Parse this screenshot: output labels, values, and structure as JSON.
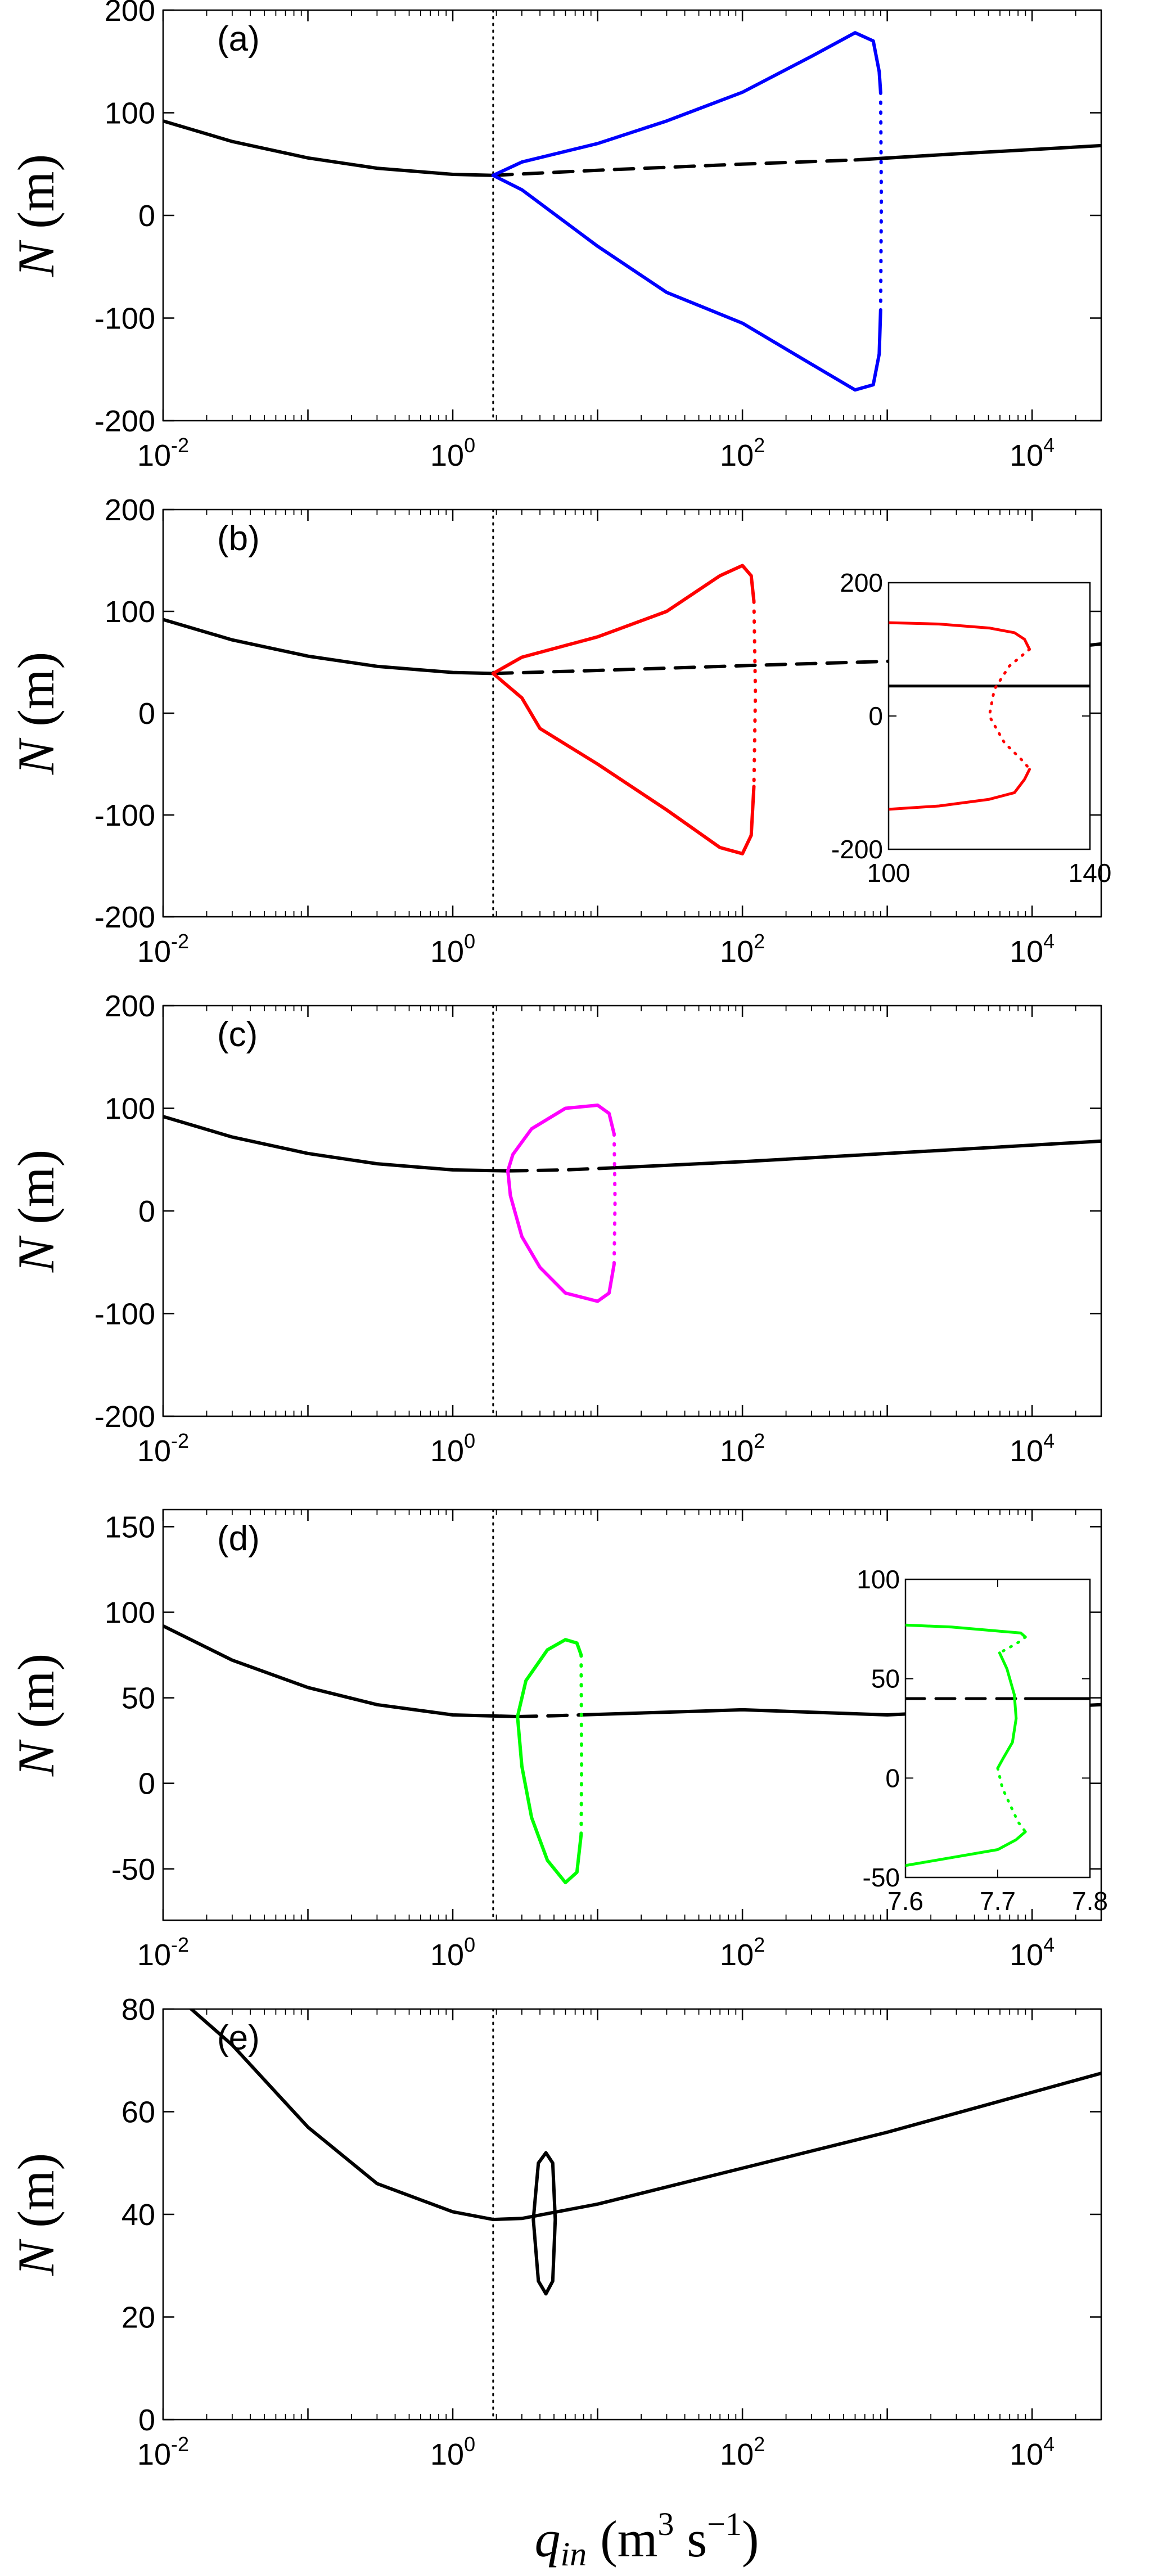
{
  "figure": {
    "xlabel": {
      "symbol": "q",
      "subscript": "in",
      "unit_open": "(m",
      "unit_exp": "3",
      "unit_rest": " s",
      "unit_exp2": "−1",
      "unit_close": ")"
    },
    "ylabel": {
      "symbol": "N",
      "unit": "(m)"
    }
  },
  "chart_data": [
    {
      "type": "line",
      "panel": "(a)",
      "x_scale": "log",
      "xlim": [
        0.01,
        30000
      ],
      "ylim": [
        -200,
        200
      ],
      "x_tick_labels": [
        "10^-2",
        "10^0",
        "10^2",
        "10^4"
      ],
      "y_ticks": [
        -200,
        -100,
        0,
        100,
        200
      ],
      "vertical_marker_x": 1.9,
      "colors": {
        "main": "#000000",
        "branch": "#0000ff"
      },
      "series": [
        {
          "style": "solid",
          "color": "#000000",
          "x": [
            0.01,
            0.03,
            0.1,
            0.3,
            1,
            1.9
          ],
          "y": [
            92,
            72,
            56,
            46,
            40,
            39
          ]
        },
        {
          "style": "dashed",
          "color": "#000000",
          "x": [
            1.9,
            10,
            100,
            600
          ],
          "y": [
            39,
            44,
            50,
            54
          ]
        },
        {
          "style": "solid",
          "color": "#000000",
          "x": [
            600,
            3000,
            30000
          ],
          "y": [
            54,
            60,
            68
          ]
        },
        {
          "style": "solid",
          "color": "#0000ff",
          "x": [
            1.9,
            3,
            10,
            30,
            100,
            300,
            600,
            800,
            880,
            900
          ],
          "y": [
            39,
            52,
            70,
            92,
            120,
            155,
            178,
            170,
            140,
            120
          ]
        },
        {
          "style": "dotted",
          "color": "#0000ff",
          "x": [
            900,
            910,
            900
          ],
          "y": [
            120,
            15,
            -92
          ]
        },
        {
          "style": "solid",
          "color": "#0000ff",
          "x": [
            900,
            880,
            800,
            600,
            300,
            100,
            30,
            10,
            3,
            1.9
          ],
          "y": [
            -92,
            -135,
            -165,
            -170,
            -145,
            -105,
            -75,
            -30,
            25,
            39
          ]
        }
      ]
    },
    {
      "type": "line",
      "panel": "(b)",
      "x_scale": "log",
      "xlim": [
        0.01,
        30000
      ],
      "ylim": [
        -200,
        200
      ],
      "x_tick_labels": [
        "10^-2",
        "10^0",
        "10^2",
        "10^4"
      ],
      "y_ticks": [
        -200,
        -100,
        0,
        100,
        200
      ],
      "vertical_marker_x": 1.9,
      "colors": {
        "main": "#000000",
        "branch": "#ff0000"
      },
      "series": [
        {
          "style": "solid",
          "color": "#000000",
          "x": [
            0.01,
            0.03,
            0.1,
            0.3,
            1,
            1.9
          ],
          "y": [
            92,
            72,
            56,
            46,
            40,
            39
          ]
        },
        {
          "style": "dashed",
          "color": "#000000",
          "x": [
            1.9,
            10,
            120,
            3000
          ],
          "y": [
            39,
            42,
            47,
            53
          ]
        },
        {
          "style": "solid",
          "color": "#000000",
          "x": [
            3000,
            30000
          ],
          "y": [
            53,
            68
          ]
        },
        {
          "style": "solid",
          "color": "#ff0000",
          "x": [
            1.9,
            3,
            10,
            30,
            70,
            100,
            115,
            120
          ],
          "y": [
            39,
            55,
            75,
            100,
            135,
            145,
            135,
            110
          ]
        },
        {
          "style": "dotted",
          "color": "#ff0000",
          "x": [
            120,
            123,
            120
          ],
          "y": [
            110,
            20,
            -72
          ]
        },
        {
          "style": "solid",
          "color": "#ff0000",
          "x": [
            120,
            115,
            100,
            70,
            30,
            10,
            4,
            3,
            1.9
          ],
          "y": [
            -72,
            -120,
            -138,
            -132,
            -95,
            -50,
            -15,
            15,
            39
          ]
        }
      ],
      "inset": {
        "x_scale": "linear",
        "xlim": [
          100,
          140
        ],
        "ylim": [
          -200,
          200
        ],
        "x_ticks": [
          100,
          140
        ],
        "y_ticks": [
          -200,
          0,
          200
        ],
        "series": [
          {
            "style": "solid",
            "color": "#000000",
            "x": [
              100,
              140
            ],
            "y": [
              45,
              45
            ]
          },
          {
            "style": "solid",
            "color": "#ff0000",
            "x": [
              100,
              110,
              120,
              125,
              127,
              128
            ],
            "y": [
              140,
              138,
              132,
              125,
              115,
              100
            ]
          },
          {
            "style": "dotted",
            "color": "#ff0000",
            "x": [
              128,
              124,
              121,
              120,
              123,
              127,
              128
            ],
            "y": [
              100,
              75,
              40,
              0,
              -40,
              -70,
              -80
            ]
          },
          {
            "style": "solid",
            "color": "#ff0000",
            "x": [
              128,
              127,
              125,
              120,
              110,
              100
            ],
            "y": [
              -80,
              -95,
              -115,
              -125,
              -135,
              -140
            ]
          }
        ]
      }
    },
    {
      "type": "line",
      "panel": "(c)",
      "x_scale": "log",
      "xlim": [
        0.01,
        30000
      ],
      "ylim": [
        -200,
        200
      ],
      "x_tick_labels": [
        "10^-2",
        "10^0",
        "10^2",
        "10^4"
      ],
      "y_ticks": [
        -200,
        -100,
        0,
        100,
        200
      ],
      "vertical_marker_x": 1.9,
      "colors": {
        "main": "#000000",
        "branch": "#ff00ff"
      },
      "series": [
        {
          "style": "solid",
          "color": "#000000",
          "x": [
            0.01,
            0.03,
            0.1,
            0.3,
            1,
            2.4
          ],
          "y": [
            92,
            72,
            56,
            46,
            40,
            39
          ]
        },
        {
          "style": "dashed",
          "color": "#000000",
          "x": [
            2.4,
            6,
            13
          ],
          "y": [
            39,
            40,
            42
          ]
        },
        {
          "style": "solid",
          "color": "#000000",
          "x": [
            13,
            100,
            1000,
            30000
          ],
          "y": [
            42,
            48,
            56,
            68
          ]
        },
        {
          "style": "solid",
          "color": "#ff00ff",
          "x": [
            2.4,
            2.6,
            3.5,
            6,
            10,
            12,
            13
          ],
          "y": [
            39,
            55,
            80,
            100,
            103,
            95,
            75
          ]
        },
        {
          "style": "dotted",
          "color": "#ff00ff",
          "x": [
            13,
            13.2,
            13
          ],
          "y": [
            75,
            10,
            -52
          ]
        },
        {
          "style": "solid",
          "color": "#ff00ff",
          "x": [
            13,
            12,
            10,
            6,
            4,
            3,
            2.5,
            2.4
          ],
          "y": [
            -52,
            -80,
            -88,
            -80,
            -55,
            -25,
            15,
            39
          ]
        }
      ]
    },
    {
      "type": "line",
      "panel": "(d)",
      "x_scale": "log",
      "xlim": [
        0.01,
        30000
      ],
      "ylim": [
        -80,
        160
      ],
      "x_tick_labels": [
        "10^-2",
        "10^0",
        "10^2",
        "10^4"
      ],
      "y_ticks": [
        -50,
        0,
        50,
        100,
        150
      ],
      "vertical_marker_x": 1.9,
      "colors": {
        "main": "#000000",
        "branch": "#00ff00"
      },
      "series": [
        {
          "style": "solid",
          "color": "#000000",
          "x": [
            0.01,
            0.03,
            0.1,
            0.3,
            1,
            2.8
          ],
          "y": [
            92,
            72,
            56,
            46,
            40,
            39
          ]
        },
        {
          "style": "dashed",
          "color": "#000000",
          "x": [
            2.8,
            5,
            7.7
          ],
          "y": [
            39,
            39.5,
            40
          ]
        },
        {
          "style": "solid",
          "color": "#000000",
          "x": [
            7.7,
            100,
            1000,
            30000
          ],
          "y": [
            40,
            43,
            40,
            46
          ]
        },
        {
          "style": "solid",
          "color": "#00ff00",
          "x": [
            2.8,
            3.2,
            4.5,
            6,
            7.2,
            7.7
          ],
          "y": [
            39,
            60,
            78,
            84,
            82,
            75
          ]
        },
        {
          "style": "dotted",
          "color": "#00ff00",
          "x": [
            7.7,
            7.75,
            7.7
          ],
          "y": [
            75,
            10,
            -30
          ]
        },
        {
          "style": "solid",
          "color": "#00ff00",
          "x": [
            7.7,
            7.2,
            6,
            4.5,
            3.5,
            3,
            2.8
          ],
          "y": [
            -30,
            -52,
            -58,
            -45,
            -20,
            10,
            39
          ]
        }
      ],
      "inset": {
        "x_scale": "linear",
        "xlim": [
          7.6,
          7.8
        ],
        "ylim": [
          -50,
          100
        ],
        "x_ticks": [
          7.6,
          7.7,
          7.8
        ],
        "y_ticks": [
          -50,
          0,
          50,
          100
        ],
        "series": [
          {
            "style": "dashed",
            "color": "#000000",
            "x": [
              7.6,
              7.73
            ],
            "y": [
              40,
              40
            ]
          },
          {
            "style": "solid",
            "color": "#000000",
            "x": [
              7.73,
              7.8
            ],
            "y": [
              40,
              40
            ]
          },
          {
            "style": "solid",
            "color": "#00ff00",
            "x": [
              7.6,
              7.65,
              7.7,
              7.725,
              7.73
            ],
            "y": [
              77,
              76,
              74,
              73,
              71
            ]
          },
          {
            "style": "dotted",
            "color": "#00ff00",
            "x": [
              7.73,
              7.725,
              7.71,
              7.702
            ],
            "y": [
              71,
              69,
              65,
              63
            ]
          },
          {
            "style": "solid",
            "color": "#00ff00",
            "x": [
              7.702,
              7.71,
              7.718,
              7.72,
              7.716,
              7.706,
              7.7
            ],
            "y": [
              63,
              55,
              42,
              30,
              18,
              10,
              5
            ]
          },
          {
            "style": "dotted",
            "color": "#00ff00",
            "x": [
              7.7,
              7.705,
              7.715,
              7.722,
              7.73
            ],
            "y": [
              5,
              -5,
              -15,
              -22,
              -27
            ]
          },
          {
            "style": "solid",
            "color": "#00ff00",
            "x": [
              7.73,
              7.72,
              7.7,
              7.65,
              7.6
            ],
            "y": [
              -27,
              -31,
              -36,
              -40,
              -44
            ]
          }
        ]
      }
    },
    {
      "type": "line",
      "panel": "(e)",
      "x_scale": "log",
      "xlim": [
        0.01,
        30000
      ],
      "ylim": [
        0,
        80
      ],
      "x_tick_labels": [
        "10^-2",
        "10^0",
        "10^2",
        "10^4"
      ],
      "y_ticks": [
        0,
        20,
        40,
        60,
        80
      ],
      "vertical_marker_x": 1.9,
      "colors": {
        "main": "#000000"
      },
      "series": [
        {
          "style": "solid",
          "color": "#000000",
          "x": [
            0.013,
            0.03,
            0.1,
            0.3,
            1,
            1.9,
            3,
            10,
            100,
            1000,
            30000
          ],
          "y": [
            82,
            73,
            57,
            46,
            40.5,
            39,
            39.2,
            42,
            49,
            56,
            67.5
          ]
        },
        {
          "style": "solid",
          "color": "#000000",
          "ellipse": true,
          "x": [
            3.6,
            3.9,
            4.4,
            4.9,
            5.1,
            4.9,
            4.4,
            3.9,
            3.6
          ],
          "y": [
            39,
            50,
            52,
            50,
            39,
            27,
            24.5,
            27,
            39
          ]
        }
      ]
    }
  ]
}
